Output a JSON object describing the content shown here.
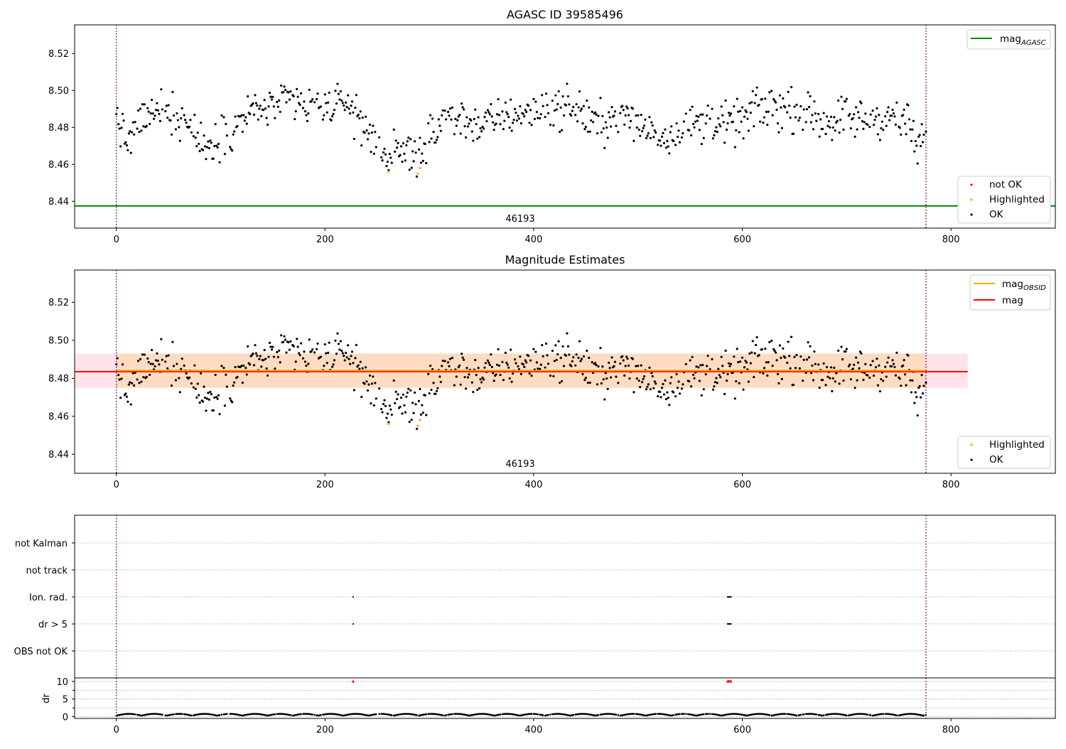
{
  "colors": {
    "ok": "#000000",
    "highlighted": "#ffa500",
    "not_ok": "#ff0000",
    "mag_agasc": "#008000",
    "mag_obsid": "#ffa500",
    "mag": "#ff0000",
    "obs_boundary": "#800080",
    "grid": "#b0b0b0",
    "band_mag": "#ffc0cb",
    "band_obsid": "#ffd8b0"
  },
  "chart_data": [
    {
      "type": "scatter",
      "title": "AGASC ID 39585496",
      "xlim": [
        -40,
        900
      ],
      "ylim": [
        8.4255,
        8.5355
      ],
      "xticks": [
        "0",
        "200",
        "400",
        "600",
        "800"
      ],
      "yticks": [
        "8.44",
        "8.46",
        "8.48",
        "8.50",
        "8.52"
      ],
      "obsid_label": "46193",
      "obs_boundaries": [
        0,
        776
      ],
      "mag_agasc": 8.4375,
      "highlighted_points": [
        [
          261,
          8.456
        ],
        [
          289,
          8.455
        ],
        [
          291,
          8.458
        ]
      ],
      "legend_lines": {
        "mag_agasc": "mag",
        "mag_agasc_sub": "AGASC"
      },
      "legend_points": {
        "not_ok": "not OK",
        "highlighted": "Highlighted",
        "ok": "OK"
      }
    },
    {
      "type": "scatter",
      "title": "Magnitude Estimates",
      "xlim": [
        -40,
        900
      ],
      "ylim": [
        8.43,
        8.537
      ],
      "xticks": [
        "0",
        "200",
        "400",
        "600",
        "800"
      ],
      "yticks": [
        "8.44",
        "8.46",
        "8.48",
        "8.50",
        "8.52"
      ],
      "obsid_label": "46193",
      "obs_boundaries": [
        0,
        776
      ],
      "mag": 8.4835,
      "mag_obsid": 8.4835,
      "mag_band": [
        8.475,
        8.493
      ],
      "band_xrange": [
        -40,
        816
      ],
      "highlighted_points": [
        [
          261,
          8.456
        ],
        [
          289,
          8.455
        ],
        [
          291,
          8.458
        ]
      ],
      "legend_lines": {
        "mag_obsid": "mag",
        "mag_obsid_sub": "OBSID",
        "mag": "mag"
      },
      "legend_points": {
        "highlighted": "Highlighted",
        "ok": "OK"
      }
    },
    {
      "type": "scatter",
      "title": "",
      "xlim": [
        -40,
        900
      ],
      "xticks": [
        "0",
        "200",
        "400",
        "600",
        "800"
      ],
      "flag_rows": [
        "not Kalman",
        "not track",
        "Ion. rad.",
        "dr > 5",
        "OBS not OK"
      ],
      "flag_points": {
        "Ion. rad.": [
          227,
          586,
          587,
          588,
          589
        ],
        "dr > 5": [
          227,
          586,
          587,
          588,
          589
        ]
      },
      "obs_boundaries": [
        0,
        776
      ]
    },
    {
      "type": "line",
      "title": "",
      "ylabel": "dr",
      "ylim": [
        -0.5,
        11
      ],
      "xlim": [
        -40,
        900
      ],
      "yticks": [
        "0",
        "5",
        "10"
      ],
      "xticks": [
        "0",
        "200",
        "400",
        "600",
        "800"
      ],
      "dr_outliers": [
        [
          227,
          10
        ],
        [
          586,
          10
        ],
        [
          587,
          10
        ],
        [
          588,
          10
        ],
        [
          589,
          10
        ]
      ],
      "obs_boundaries": [
        0,
        776
      ]
    }
  ]
}
